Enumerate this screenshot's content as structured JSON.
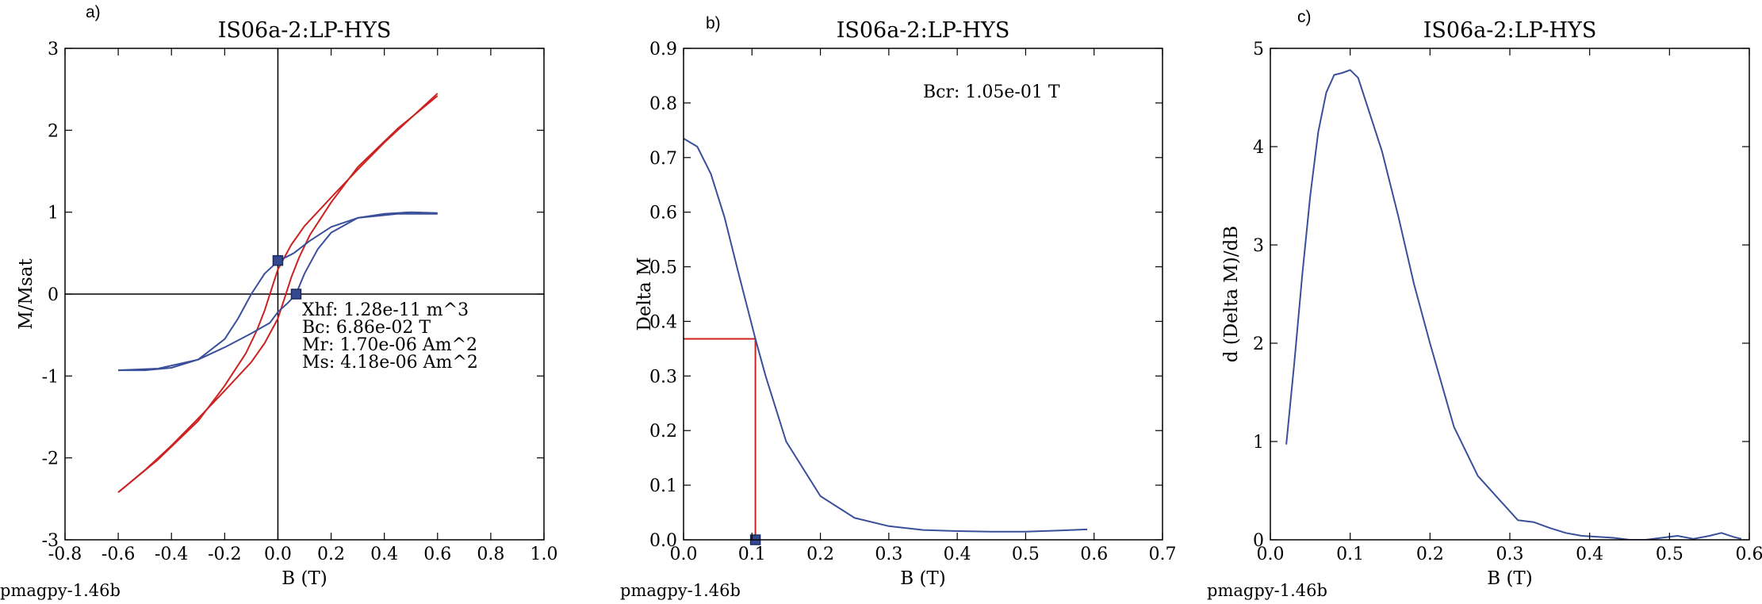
{
  "chart_data": [
    {
      "panel_label": "a)",
      "type": "line",
      "title": "IS06a-2:LP-HYS",
      "xlabel": "B (T)",
      "ylabel": "M/Msat",
      "xlim": [
        -0.8,
        1.0
      ],
      "ylim": [
        -3,
        3
      ],
      "xticks": [
        "-0.8",
        "-0.6",
        "-0.4",
        "-0.2",
        "0.0",
        "0.2",
        "0.4",
        "0.6",
        "0.8",
        "1.0"
      ],
      "yticks": [
        "-3",
        "-2",
        "-1",
        "0",
        "1",
        "2",
        "3"
      ],
      "series": [
        {
          "color": "#cc2222",
          "x": [
            0.6,
            0.45,
            0.3,
            0.2,
            0.12,
            0.08,
            0.05,
            0.02,
            0.0,
            -0.05,
            -0.1,
            -0.2,
            -0.3,
            -0.4,
            -0.5,
            -0.6
          ],
          "y": [
            2.42,
            2.02,
            1.55,
            1.12,
            0.72,
            0.45,
            0.2,
            -0.1,
            -0.3,
            -0.6,
            -0.83,
            -1.18,
            -1.52,
            -1.85,
            -2.15,
            -2.42
          ]
        },
        {
          "color": "#cc2222",
          "x": [
            -0.6,
            -0.45,
            -0.3,
            -0.2,
            -0.12,
            -0.08,
            -0.05,
            -0.02,
            0.0,
            0.05,
            0.1,
            0.2,
            0.3,
            0.4,
            0.5,
            0.6
          ],
          "y": [
            -2.42,
            -2.02,
            -1.55,
            -1.12,
            -0.72,
            -0.45,
            -0.2,
            0.1,
            0.3,
            0.6,
            0.83,
            1.18,
            1.52,
            1.85,
            2.15,
            2.45
          ]
        },
        {
          "color": "#3a4f9a",
          "x": [
            0.6,
            0.45,
            0.3,
            0.2,
            0.12,
            0.06,
            0.0,
            -0.05,
            -0.1,
            -0.15,
            -0.2,
            -0.3,
            -0.4,
            -0.5,
            -0.6
          ],
          "y": [
            0.98,
            0.98,
            0.93,
            0.82,
            0.65,
            0.5,
            0.4,
            0.25,
            0.0,
            -0.3,
            -0.55,
            -0.8,
            -0.9,
            -0.93,
            -0.93
          ]
        },
        {
          "color": "#3a4f9a",
          "x": [
            -0.6,
            -0.45,
            -0.3,
            -0.2,
            -0.1,
            -0.03,
            0.0,
            0.04,
            0.068,
            0.1,
            0.15,
            0.2,
            0.3,
            0.4,
            0.5,
            0.6
          ],
          "y": [
            -0.93,
            -0.91,
            -0.8,
            -0.65,
            -0.48,
            -0.35,
            -0.22,
            -0.1,
            0.0,
            0.25,
            0.55,
            0.75,
            0.93,
            0.98,
            1.0,
            0.99
          ]
        }
      ],
      "markers": [
        {
          "x": 0.0,
          "y": 0.41
        },
        {
          "x": 0.0686,
          "y": 0.0
        }
      ],
      "annotations": [
        "Xhf: 1.28e-11 m^3",
        "Bc: 6.86e-02 T",
        "Mr: 1.70e-06 Am^2",
        "Ms: 4.18e-06 Am^2"
      ],
      "reference_lines": {
        "x": 0,
        "y": 0
      },
      "grid": false
    },
    {
      "panel_label": "b)",
      "type": "line",
      "title": "IS06a-2:LP-HYS",
      "xlabel": "B (T)",
      "ylabel": "Delta M",
      "xlim": [
        0.0,
        0.7
      ],
      "ylim": [
        0.0,
        0.9
      ],
      "xticks": [
        "0.0",
        "0.1",
        "0.2",
        "0.3",
        "0.4",
        "0.5",
        "0.6",
        "0.7"
      ],
      "yticks": [
        "0.0",
        "0.1",
        "0.2",
        "0.3",
        "0.4",
        "0.5",
        "0.6",
        "0.7",
        "0.8",
        "0.9"
      ],
      "series": [
        {
          "color": "#3a4f9a",
          "x": [
            0.0,
            0.02,
            0.04,
            0.06,
            0.08,
            0.105,
            0.12,
            0.15,
            0.2,
            0.25,
            0.3,
            0.35,
            0.4,
            0.45,
            0.5,
            0.55,
            0.59
          ],
          "y": [
            0.735,
            0.72,
            0.67,
            0.59,
            0.49,
            0.368,
            0.3,
            0.18,
            0.08,
            0.04,
            0.025,
            0.018,
            0.016,
            0.015,
            0.015,
            0.017,
            0.019
          ]
        }
      ],
      "crossover": {
        "x": 0.105,
        "y": 0.368,
        "color": "#cc2222"
      },
      "markers": [
        {
          "x": 0.105,
          "y": 0.0
        }
      ],
      "annotations": [
        "Bcr: 1.05e-01 T"
      ],
      "grid": false
    },
    {
      "panel_label": "c)",
      "type": "line",
      "title": "IS06a-2:LP-HYS",
      "xlabel": "B (T)",
      "ylabel": "d (Delta M)/dB",
      "xlim": [
        0.0,
        0.6
      ],
      "ylim": [
        0,
        5
      ],
      "xticks": [
        "0.0",
        "0.1",
        "0.2",
        "0.3",
        "0.4",
        "0.5",
        "0.6"
      ],
      "yticks": [
        "0",
        "1",
        "2",
        "3",
        "4",
        "5"
      ],
      "series": [
        {
          "color": "#3a4f9a",
          "x": [
            0.02,
            0.03,
            0.04,
            0.05,
            0.06,
            0.07,
            0.08,
            0.09,
            0.1,
            0.11,
            0.12,
            0.14,
            0.16,
            0.18,
            0.2,
            0.23,
            0.26,
            0.29,
            0.31,
            0.33,
            0.35,
            0.37,
            0.39,
            0.41,
            0.43,
            0.45,
            0.47,
            0.49,
            0.51,
            0.53,
            0.55,
            0.565,
            0.58,
            0.59
          ],
          "y": [
            0.97,
            1.8,
            2.7,
            3.5,
            4.15,
            4.55,
            4.73,
            4.75,
            4.78,
            4.7,
            4.45,
            3.95,
            3.3,
            2.6,
            2.0,
            1.15,
            0.65,
            0.38,
            0.2,
            0.18,
            0.12,
            0.07,
            0.04,
            0.03,
            0.02,
            0.0,
            0.0,
            0.02,
            0.04,
            0.01,
            0.04,
            0.07,
            0.03,
            0.01
          ]
        }
      ],
      "grid": false
    }
  ],
  "credits": [
    "pmagpy-1.46b",
    "pmagpy-1.46b",
    "pmagpy-1.46b"
  ]
}
